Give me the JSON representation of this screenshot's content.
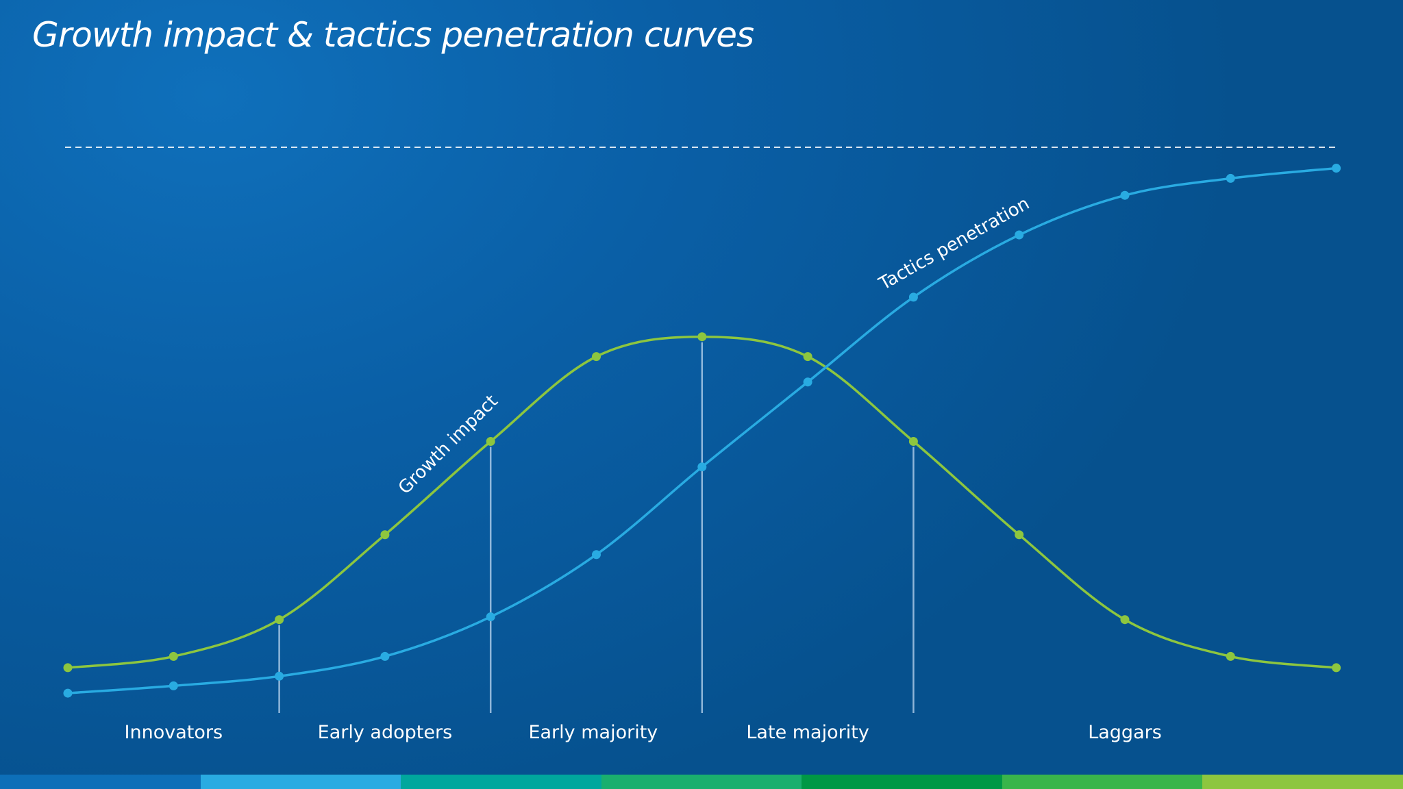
{
  "title": "Growth impact & tactics penetration curves",
  "chart_data": {
    "type": "line",
    "x": [
      0,
      1,
      2,
      3,
      4,
      5,
      6,
      7,
      8,
      9,
      10,
      11,
      12
    ],
    "ylim": [
      0,
      100
    ],
    "reference_line": 100,
    "series": [
      {
        "name": "Growth impact",
        "color": "#8dc63f",
        "values": [
          8,
          10,
          16.5,
          31.5,
          48,
          63,
          66.5,
          63,
          48,
          31.5,
          16.5,
          10,
          8
        ]
      },
      {
        "name": "Tactics penetration",
        "color": "#29abe2",
        "values": [
          3.5,
          4.8,
          6.5,
          10,
          17,
          28,
          43.5,
          58.5,
          73.5,
          84.5,
          91.5,
          94.5,
          96.3
        ]
      }
    ],
    "divider_x": [
      2,
      4,
      6,
      8
    ],
    "segments": [
      {
        "label": "Innovators",
        "center_x": 1
      },
      {
        "label": "Early adopters",
        "center_x": 3
      },
      {
        "label": "Early majority",
        "center_x": 4.97
      },
      {
        "label": "Late majority",
        "center_x": 7
      },
      {
        "label": "Laggars",
        "center_x": 10
      }
    ]
  },
  "bottom_bar_colors": [
    "#0d6fb8",
    "#29abe2",
    "#00a79d",
    "#1aaf6e",
    "#009845",
    "#39b54a",
    "#8dc63f"
  ]
}
